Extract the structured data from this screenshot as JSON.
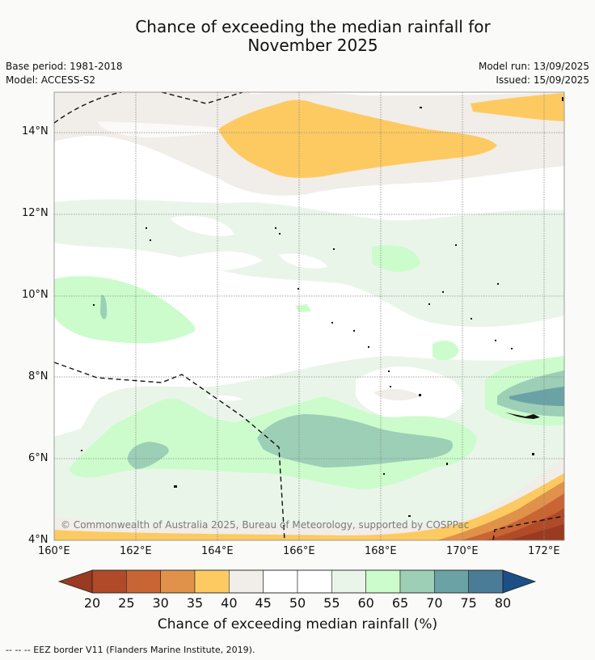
{
  "title_line1": "Chance of exceeding the median rainfall for",
  "title_line2": "November 2025",
  "base_period": "Base period: 1981-2018",
  "model": "Model: ACCESS-S2",
  "model_run": "Model run: 13/09/2025",
  "issued": "Issued: 15/09/2025",
  "copyright": "© Commonwealth of Australia 2025, Bureau of Meteorology, supported by COSPPac",
  "lat_ticks": [
    "14°N",
    "12°N",
    "10°N",
    "8°N",
    "6°N",
    "4°N"
  ],
  "lon_ticks": [
    "160°E",
    "162°E",
    "164°E",
    "166°E",
    "168°E",
    "170°E",
    "172°E"
  ],
  "colorbar": {
    "title": "Chance of exceeding median rainfall (%)",
    "tick_labels": [
      "20",
      "25",
      "30",
      "35",
      "40",
      "45",
      "50",
      "55",
      "60",
      "65",
      "70",
      "75",
      "80"
    ],
    "colors": [
      "#9a3a20",
      "#b04a28",
      "#c96434",
      "#e0914a",
      "#fdca62",
      "#f1ede8",
      "#ffffff",
      "#ffffff",
      "#eaf5ea",
      "#ccfccc",
      "#9ccfb6",
      "#6ba2a6",
      "#4a7c98",
      "#1b4f87"
    ]
  },
  "legend_text": "--  --  -- EEZ border V11 (Flanders Marine Institute, 2019)."
}
